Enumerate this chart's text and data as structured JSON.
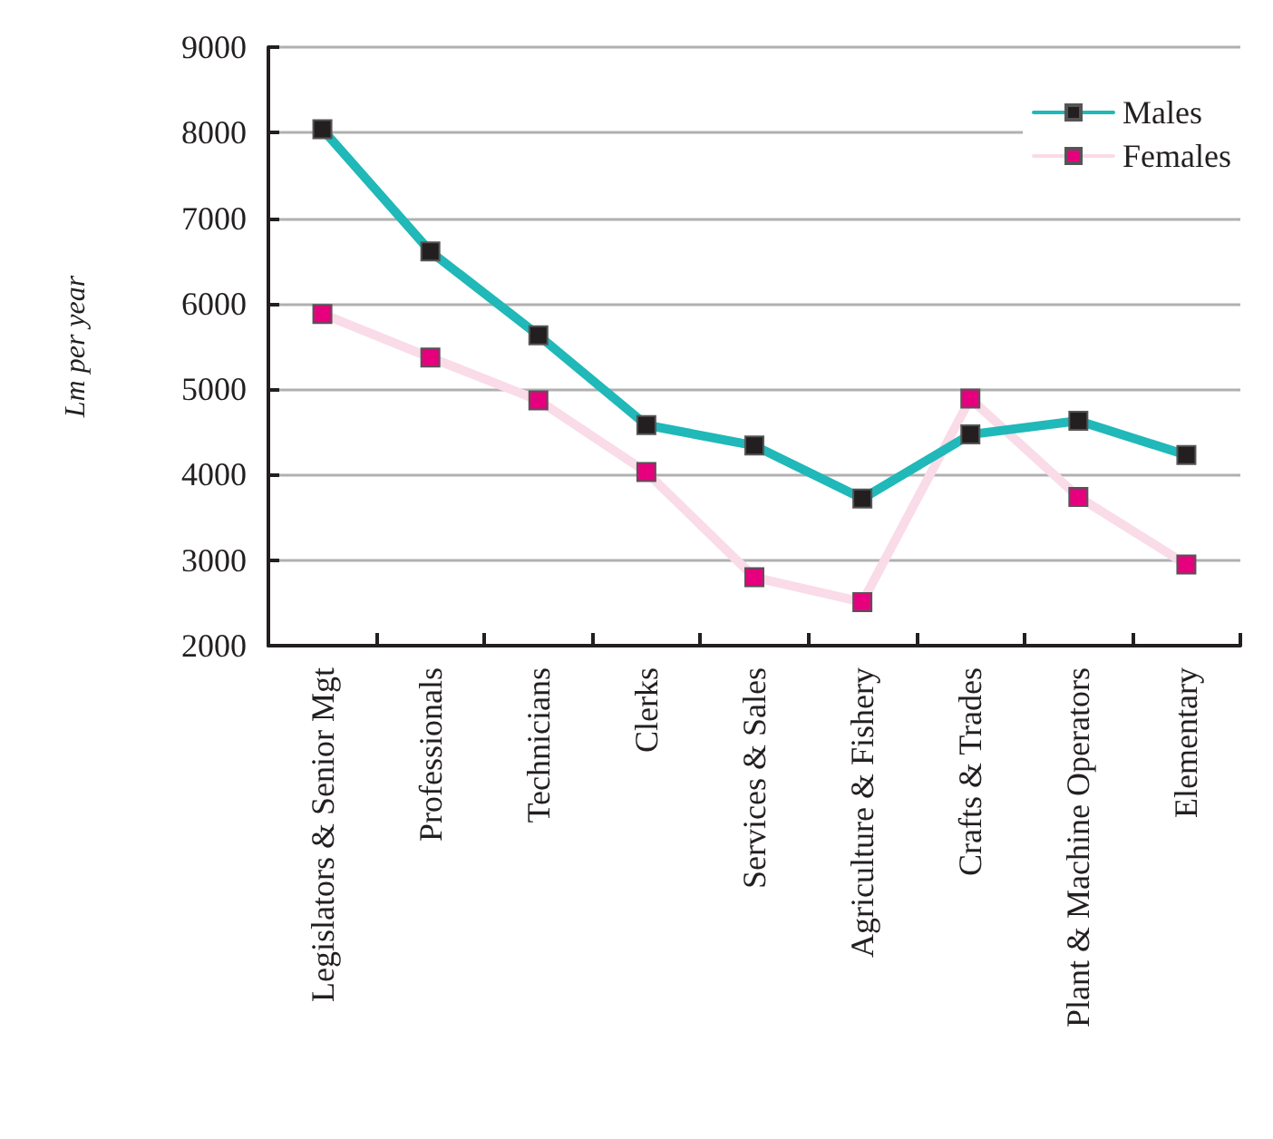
{
  "chart_data": {
    "type": "line",
    "ylabel": "Lm per year",
    "categories": [
      "Legislators & Senior Mgt",
      "Professionals",
      "Technicians",
      "Clerks",
      "Services & Sales",
      "Agriculture & Fishery",
      "Crafts & Trades",
      "Plant & Machine Operators",
      "Elementary"
    ],
    "series": [
      {
        "name": "Males",
        "color": "#20b8b8",
        "values": [
          8040,
          6610,
          5630,
          4580,
          4340,
          3720,
          4470,
          4630,
          4230
        ]
      },
      {
        "name": "Females",
        "color": "#fadbe8",
        "values": [
          5880,
          5370,
          4870,
          4030,
          2800,
          2510,
          4890,
          3740,
          2950
        ]
      }
    ],
    "ylim": [
      2000,
      9000
    ],
    "yticks": [
      2000,
      3000,
      4000,
      5000,
      6000,
      7000,
      8000,
      9000
    ],
    "grid": "y",
    "legend": "top right",
    "marker": "square",
    "line_style": "solid"
  }
}
